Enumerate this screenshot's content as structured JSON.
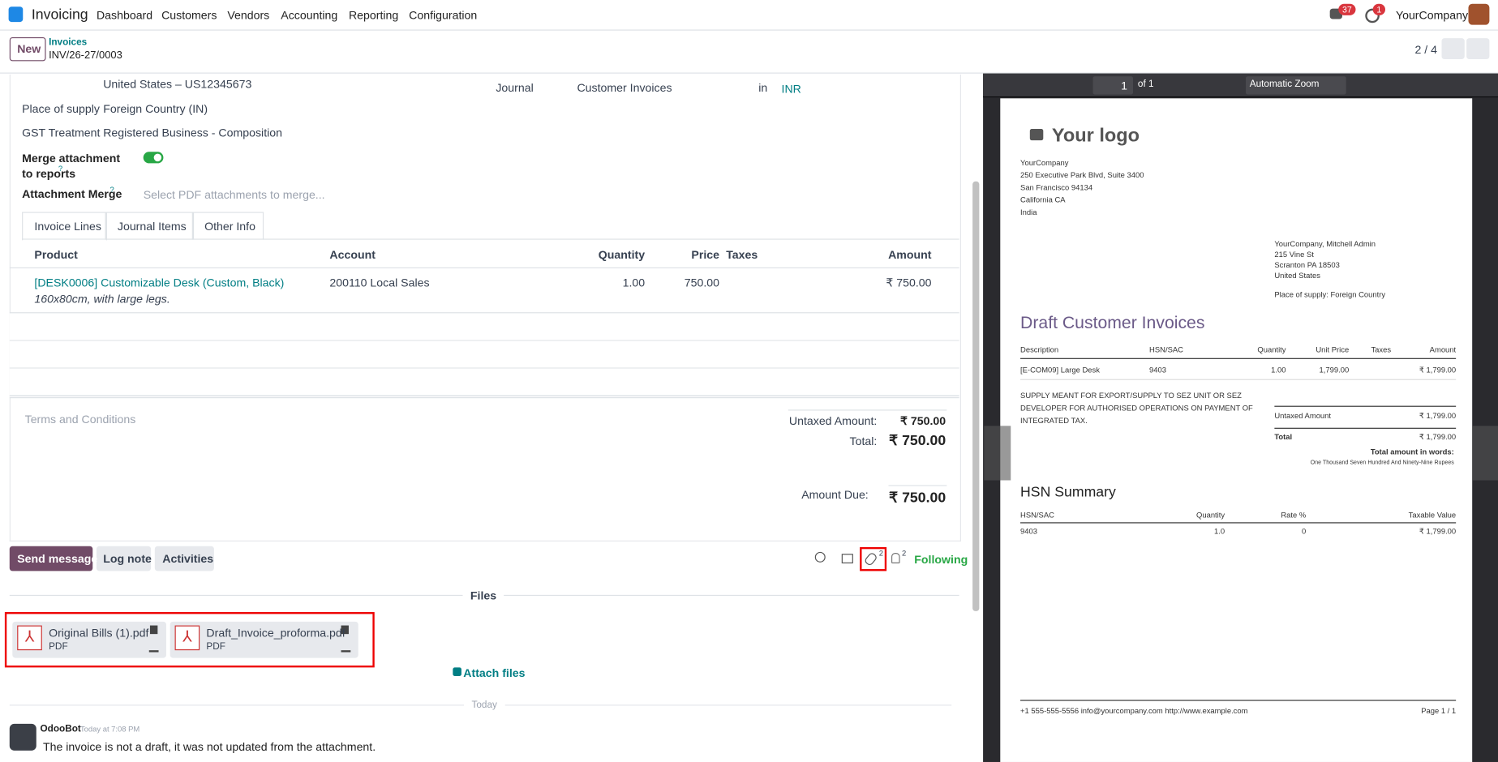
{
  "navbar": {
    "app": "Invoicing",
    "menu": [
      "Dashboard",
      "Customers",
      "Vendors",
      "Accounting",
      "Reporting",
      "Configuration"
    ],
    "messages_badge": "37",
    "activities_badge": "1",
    "company": "YourCompany"
  },
  "control": {
    "new": "New",
    "breadcrumb": "Invoices",
    "record": "INV/26-27/0003",
    "pager": "2 / 4"
  },
  "form": {
    "vat": "United States – US12345673",
    "place_label": "Place of supply",
    "place_value": "Foreign Country (IN)",
    "gst_label": "GST Treatment",
    "gst_value": "Registered Business - Composition",
    "merge_label": "Merge attachment to reports",
    "help": "?",
    "attach_merge_label": "Attachment Merge",
    "attach_merge_placeholder": "Select PDF attachments to merge...",
    "journal_label": "Journal",
    "journal_value": "Customer Invoices",
    "in": "in",
    "currency": "INR"
  },
  "tabs": [
    "Invoice Lines",
    "Journal Items",
    "Other Info"
  ],
  "table": {
    "headers": [
      "Product",
      "Account",
      "Quantity",
      "Price",
      "Taxes",
      "Amount"
    ],
    "row": {
      "product": "[DESK0006] Customizable Desk (Custom, Black)",
      "description": "160x80cm, with large legs.",
      "account": "200110 Local Sales",
      "quantity": "1.00",
      "price": "750.00",
      "amount": "₹ 750.00"
    }
  },
  "terms": "Terms and Conditions",
  "totals": {
    "untaxed_label": "Untaxed Amount:",
    "untaxed_value": "₹ 750.00",
    "total_label": "Total:",
    "total_value": "₹ 750.00",
    "due_label": "Amount Due:",
    "due_value": "₹ 750.00"
  },
  "chatter": {
    "buttons": [
      "Send message",
      "Log note",
      "Activities"
    ],
    "attachments_count": "2",
    "followers_count": "2",
    "following": "Following",
    "files_header": "Files",
    "files": [
      {
        "name": "Original Bills (1).pdf",
        "type": "PDF"
      },
      {
        "name": "Draft_Invoice_proforma.pdf",
        "type": "PDF"
      }
    ],
    "attach": "Attach files",
    "today": "Today",
    "message": {
      "author": "OdooBot",
      "time": "Today at 7:08 PM",
      "body": "The invoice is not a draft, it was not updated from the attachment."
    }
  },
  "pdf": {
    "page": "1",
    "of": "of 1",
    "zoom": "Automatic Zoom",
    "logo": "Your logo",
    "company_lines": [
      "YourCompany",
      "250 Executive Park Blvd, Suite 3400",
      "San Francisco 94134",
      "California CA",
      "India"
    ],
    "customer_lines": [
      "YourCompany, Mitchell Admin",
      "215 Vine St",
      "Scranton PA 18503",
      "United States"
    ],
    "place": "Place of supply: Foreign Country",
    "title": "Draft Customer Invoices",
    "headers": [
      "Description",
      "HSN/SAC",
      "Quantity",
      "Unit Price",
      "Taxes",
      "Amount"
    ],
    "row": [
      "[E-COM09] Large Desk",
      "9403",
      "1.00",
      "1,799.00",
      "₹ 1,799.00"
    ],
    "note": "SUPPLY MEANT FOR EXPORT/SUPPLY TO SEZ UNIT OR SEZ DEVELOPER FOR AUTHORISED OPERATIONS ON PAYMENT OF INTEGRATED TAX.",
    "untaxed_label": "Untaxed Amount",
    "untaxed_value": "₹ 1,799.00",
    "total_label": "Total",
    "total_value": "₹ 1,799.00",
    "words_label": "Total amount in words:",
    "words": "One Thousand Seven Hundred And Ninety-Nine Rupees",
    "hsn_title": "HSN Summary",
    "hsn_headers": [
      "HSN/SAC",
      "Quantity",
      "Rate %",
      "Taxable Value"
    ],
    "hsn_row": [
      "9403",
      "1.0",
      "0",
      "₹ 1,799.00"
    ],
    "footer": "+1 555-555-5556 info@yourcompany.com http://www.example.com",
    "page_label": "Page 1 / 1"
  }
}
